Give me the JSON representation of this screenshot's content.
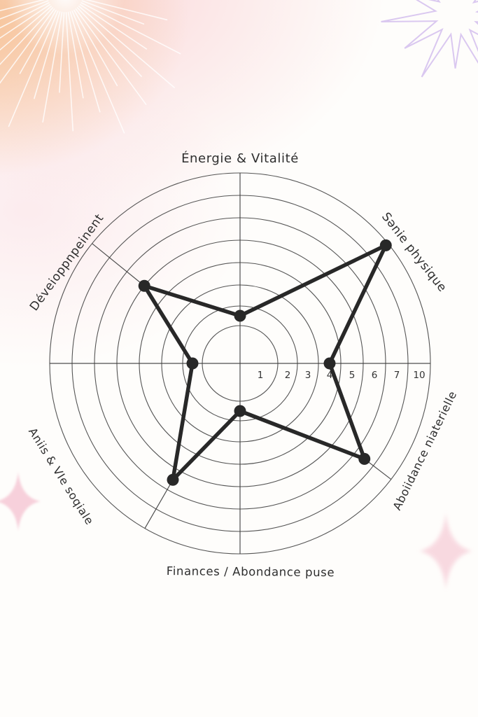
{
  "page": {
    "background_color": "#fefdfb"
  },
  "chart_data": {
    "type": "radar",
    "title": "",
    "description": "Wheel-of-life style radar chart, 8 spokes, concentric ring grid, single dark series with point markers",
    "axes": [
      {
        "id": "n",
        "label": "Énergie & Vitalité",
        "value": 2
      },
      {
        "id": "ne",
        "label": "Sənie physique",
        "value": 10
      },
      {
        "id": "e",
        "label": "",
        "value": 4
      },
      {
        "id": "se",
        "label": "Aboiidance niaterielle",
        "value": 7
      },
      {
        "id": "s",
        "label": "Finances / Abondance puse",
        "value": 2
      },
      {
        "id": "sw",
        "label": "Aniis & VIe soqiale",
        "value": 6
      },
      {
        "id": "w",
        "label": "",
        "value": 2
      },
      {
        "id": "nw",
        "label": "Déveioppnpeinent",
        "value": 5.5
      }
    ],
    "scale_ticks": [
      "1",
      "2",
      "3",
      "4",
      "5",
      "6",
      "7",
      "10"
    ],
    "scale_min": 1,
    "scale_max": 10,
    "ring_count": 8,
    "grid_on": true,
    "legend": "none",
    "grid_color": "#3d3d3d",
    "series_color": "#282828",
    "label_color": "#2e2e2e",
    "tick_color": "#333333"
  },
  "decorations": {
    "sunburst_color": "#ffffff",
    "starburst_color": "#d6c2ee",
    "sparkle_left_color": "#f6c9d6",
    "sparkle_right_color": "#f8d6de",
    "wash_orange": "#f6c192",
    "wash_pink": "#fad6d8"
  }
}
